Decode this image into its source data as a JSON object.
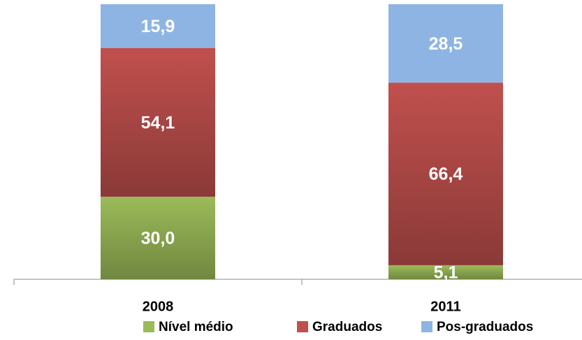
{
  "chart_data": {
    "type": "stacked_bar",
    "categories": [
      "2008",
      "2011"
    ],
    "series": [
      {
        "name": "Nível médio",
        "color": "#9bbb59",
        "values": [
          30.0,
          5.1
        ],
        "value_labels": [
          "30,0",
          "5,1"
        ]
      },
      {
        "name": "Graduados",
        "color": "#c0504d",
        "values": [
          54.1,
          66.4
        ],
        "value_labels": [
          "54,1",
          "66,4"
        ]
      },
      {
        "name": "Pos-graduados",
        "color": "#8eb4e3",
        "values": [
          15.9,
          28.5
        ],
        "value_labels": [
          "15,9",
          "28,5"
        ]
      }
    ]
  }
}
